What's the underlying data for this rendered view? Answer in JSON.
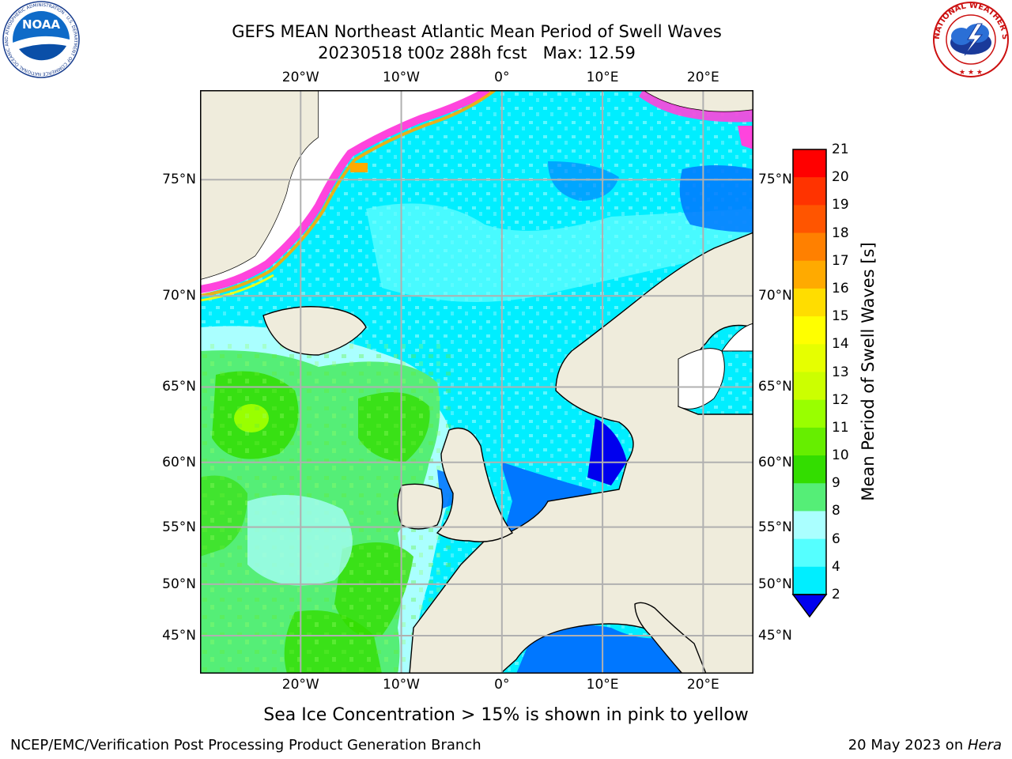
{
  "title": {
    "line1": "GEFS MEAN Northeast Atlantic Mean Period of Swell Waves",
    "line2": "20230518 t00z 288h fcst   Max: 12.59"
  },
  "logos": {
    "left": {
      "name": "NOAA",
      "ring_text": "NATIONAL OCEANIC AND ATMOSPHERIC ADMINISTRATION · U.S. DEPARTMENT OF COMMERCE"
    },
    "right": {
      "name": "NATIONAL WEATHER SERVICE"
    }
  },
  "map": {
    "lon_range": [
      -30,
      25
    ],
    "lat_range": [
      41,
      78
    ],
    "lon_ticks": [
      "20°W",
      "10°W",
      "0°",
      "10°E",
      "20°E"
    ],
    "lat_ticks": [
      "75°N",
      "70°N",
      "65°N",
      "60°N",
      "55°N",
      "50°N",
      "45°N"
    ],
    "colors": {
      "land": "#efecdc",
      "ice_free": "#ffffff",
      "grid": "#b0b0b0"
    }
  },
  "colorbar": {
    "title": "Mean Period of Swell Waves [s]",
    "labels": [
      "21",
      "20",
      "19",
      "18",
      "17",
      "16",
      "15",
      "14",
      "13",
      "12",
      "11",
      "10",
      "9",
      "8",
      "6",
      "4",
      "2"
    ],
    "colors": [
      "#ff0000",
      "#ff3300",
      "#ff5500",
      "#ff8000",
      "#ffaa00",
      "#ffdd00",
      "#ffff00",
      "#e6ff00",
      "#ccff00",
      "#99ff00",
      "#66ee00",
      "#33dd00",
      "#55ee77",
      "#aaffff",
      "#55ffff",
      "#00eeff",
      "#0077ff",
      "#0000ee"
    ]
  },
  "note": "Sea Ice Concentration > 15% is shown in pink to yellow",
  "footer": {
    "left": "NCEP/EMC/Verification Post Processing Product Generation Branch",
    "date": "20 May 2023 on ",
    "host": "Hera"
  }
}
